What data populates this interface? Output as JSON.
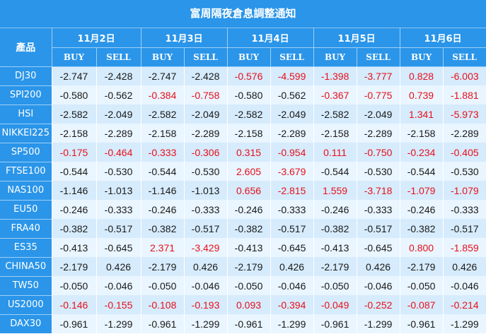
{
  "title": "富周隔夜倉息調整通知",
  "product_header": "產品",
  "buy_label": "BUY",
  "sell_label": "SELL",
  "dates": [
    "11月2日",
    "11月3日",
    "11月4日",
    "11月5日",
    "11月6日"
  ],
  "rows": [
    {
      "name": "DJ30",
      "values": [
        "-2.747",
        "-2.428",
        "-2.747",
        "-2.428",
        "-0.576",
        "-4.599",
        "-1.398",
        "-3.777",
        "0.828",
        "-6.003"
      ],
      "red": [
        false,
        false,
        false,
        false,
        true,
        true,
        true,
        true,
        true,
        true
      ]
    },
    {
      "name": "SPI200",
      "values": [
        "-0.580",
        "-0.562",
        "-0.384",
        "-0.758",
        "-0.580",
        "-0.562",
        "-0.367",
        "-0.775",
        "0.739",
        "-1.881"
      ],
      "red": [
        false,
        false,
        true,
        true,
        false,
        false,
        true,
        true,
        true,
        true
      ]
    },
    {
      "name": "HSI",
      "values": [
        "-2.582",
        "-2.049",
        "-2.582",
        "-2.049",
        "-2.582",
        "-2.049",
        "-2.582",
        "-2.049",
        "1.341",
        "-5.973"
      ],
      "red": [
        false,
        false,
        false,
        false,
        false,
        false,
        false,
        false,
        true,
        true
      ]
    },
    {
      "name": "NIKKEI225",
      "values": [
        "-2.158",
        "-2.289",
        "-2.158",
        "-2.289",
        "-2.158",
        "-2.289",
        "-2.158",
        "-2.289",
        "-2.158",
        "-2.289"
      ],
      "red": [
        false,
        false,
        false,
        false,
        false,
        false,
        false,
        false,
        false,
        false
      ]
    },
    {
      "name": "SP500",
      "values": [
        "-0.175",
        "-0.464",
        "-0.333",
        "-0.306",
        "0.315",
        "-0.954",
        "0.111",
        "-0.750",
        "-0.234",
        "-0.405"
      ],
      "red": [
        true,
        true,
        true,
        true,
        true,
        true,
        true,
        true,
        true,
        true
      ]
    },
    {
      "name": "FTSE100",
      "values": [
        "-0.544",
        "-0.530",
        "-0.544",
        "-0.530",
        "2.605",
        "-3.679",
        "-0.544",
        "-0.530",
        "-0.544",
        "-0.530"
      ],
      "red": [
        false,
        false,
        false,
        false,
        true,
        true,
        false,
        false,
        false,
        false
      ]
    },
    {
      "name": "NAS100",
      "values": [
        "-1.146",
        "-1.013",
        "-1.146",
        "-1.013",
        "0.656",
        "-2.815",
        "1.559",
        "-3.718",
        "-1.079",
        "-1.079"
      ],
      "red": [
        false,
        false,
        false,
        false,
        true,
        true,
        true,
        true,
        true,
        true
      ]
    },
    {
      "name": "EU50",
      "values": [
        "-0.246",
        "-0.333",
        "-0.246",
        "-0.333",
        "-0.246",
        "-0.333",
        "-0.246",
        "-0.333",
        "-0.246",
        "-0.333"
      ],
      "red": [
        false,
        false,
        false,
        false,
        false,
        false,
        false,
        false,
        false,
        false
      ]
    },
    {
      "name": "FRA40",
      "values": [
        "-0.382",
        "-0.517",
        "-0.382",
        "-0.517",
        "-0.382",
        "-0.517",
        "-0.382",
        "-0.517",
        "-0.382",
        "-0.517"
      ],
      "red": [
        false,
        false,
        false,
        false,
        false,
        false,
        false,
        false,
        false,
        false
      ]
    },
    {
      "name": "ES35",
      "values": [
        "-0.413",
        "-0.645",
        "2.371",
        "-3.429",
        "-0.413",
        "-0.645",
        "-0.413",
        "-0.645",
        "0.800",
        "-1.859"
      ],
      "red": [
        false,
        false,
        true,
        true,
        false,
        false,
        false,
        false,
        true,
        true
      ]
    },
    {
      "name": "CHINA50",
      "values": [
        "-2.179",
        "0.426",
        "-2.179",
        "0.426",
        "-2.179",
        "0.426",
        "-2.179",
        "0.426",
        "-2.179",
        "0.426"
      ],
      "red": [
        false,
        false,
        false,
        false,
        false,
        false,
        false,
        false,
        false,
        false
      ]
    },
    {
      "name": "TW50",
      "values": [
        "-0.050",
        "-0.046",
        "-0.050",
        "-0.046",
        "-0.050",
        "-0.046",
        "-0.050",
        "-0.046",
        "-0.050",
        "-0.046"
      ],
      "red": [
        false,
        false,
        false,
        false,
        false,
        false,
        false,
        false,
        false,
        false
      ]
    },
    {
      "name": "US2000",
      "values": [
        "-0.146",
        "-0.155",
        "-0.108",
        "-0.193",
        "0.093",
        "-0.394",
        "-0.049",
        "-0.252",
        "-0.087",
        "-0.214"
      ],
      "red": [
        true,
        true,
        true,
        true,
        true,
        true,
        true,
        true,
        true,
        true
      ]
    },
    {
      "name": "DAX30",
      "values": [
        "-0.961",
        "-1.299",
        "-0.961",
        "-1.299",
        "-0.961",
        "-1.299",
        "-0.961",
        "-1.299",
        "-0.961",
        "-1.299"
      ],
      "red": [
        false,
        false,
        false,
        false,
        false,
        false,
        false,
        false,
        false,
        false
      ]
    }
  ],
  "colors": {
    "header_blue": "#2a95e9",
    "row_light": "#e9f5ff",
    "row_dark": "#d6ebfc",
    "red_value": "#e8101a"
  }
}
